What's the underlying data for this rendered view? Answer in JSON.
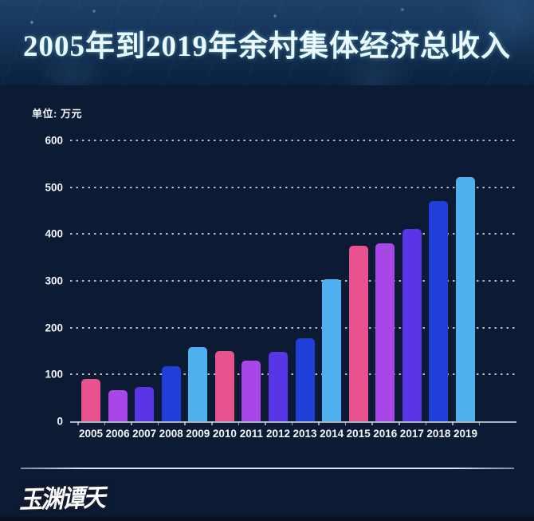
{
  "chart_data": {
    "type": "bar",
    "title": "2005年到2019年余村集体经济总收入",
    "unit_label": "单位: 万元",
    "xlabel": "",
    "ylabel": "",
    "categories": [
      "2005",
      "2006",
      "2007",
      "2008",
      "2009",
      "2010",
      "2011",
      "2012",
      "2013",
      "2014",
      "2015",
      "2016",
      "2017",
      "2018",
      "2019"
    ],
    "values": [
      91,
      66,
      73,
      117,
      158,
      150,
      129,
      149,
      177,
      304,
      375,
      380,
      410,
      471,
      521
    ],
    "ylim": [
      0,
      600
    ],
    "ytick_step": 100,
    "yticks": [
      0,
      100,
      200,
      300,
      400,
      500,
      600
    ],
    "grid": "horizontal-dotted",
    "legend_position": "none",
    "bar_color_cycle": [
      "#e8538f",
      "#a846e8",
      "#5a35e8",
      "#1f3fd8",
      "#4fb0f0"
    ],
    "background_color": "#0d1a33",
    "banner_color": "#16355b",
    "axis_line_color": "#a9b4c2",
    "text_color": "#f4f7fa"
  },
  "footer": {
    "logo_text": "玉渊谭天"
  }
}
